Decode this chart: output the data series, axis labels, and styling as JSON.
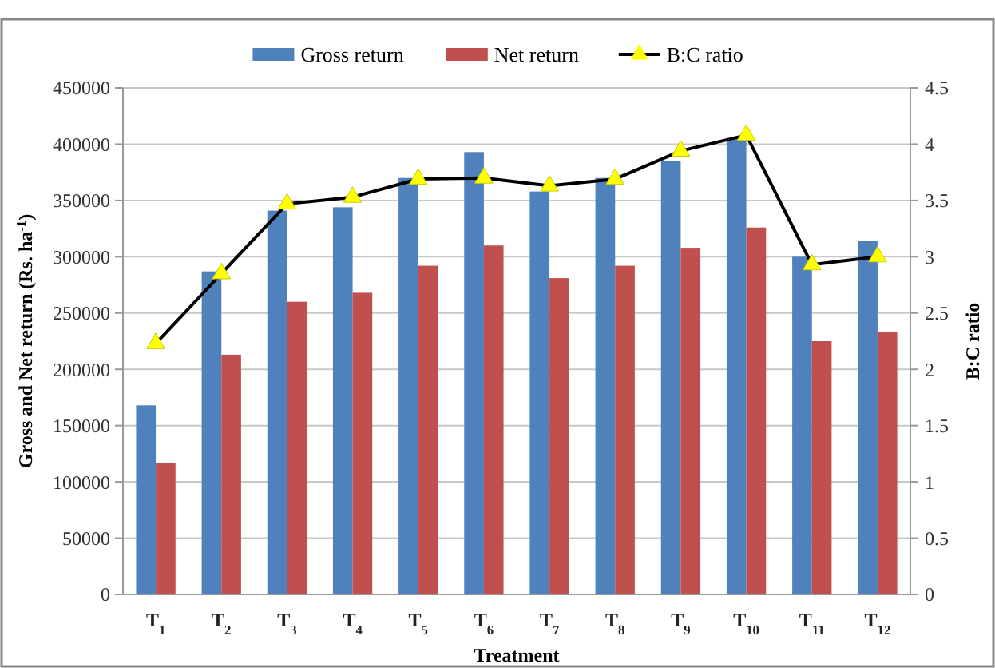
{
  "chart_data": {
    "type": "bar",
    "xlabel": "Treatment",
    "ylabel": "Gross and Net return (Rs. ha$^{-1}$)",
    "y2label": "B:C ratio",
    "categories": [
      "T$_{1}$",
      "T$_{2}$",
      "T$_{3}$",
      "T$_{4}$",
      "T$_{5}$",
      "T$_{6}$",
      "T$_{7}$",
      "T$_{8}$",
      "T$_{9}$",
      "T$_{10}$",
      "T$_{11}$",
      "T$_{12}$"
    ],
    "series": [
      {
        "name": "Gross return",
        "color": "#4f81bd",
        "values": [
          168000,
          287000,
          341000,
          344000,
          370000,
          393000,
          358000,
          370000,
          385000,
          405000,
          300000,
          314000
        ]
      },
      {
        "name": "Net return",
        "color": "#c0504d",
        "values": [
          117000,
          213000,
          260000,
          268000,
          292000,
          310000,
          281000,
          292000,
          308000,
          326000,
          225000,
          233000
        ]
      },
      {
        "name": "B:C ratio",
        "type": "line",
        "axis": "y2",
        "color": "#000000",
        "marker": "triangle",
        "values": [
          2.23,
          2.85,
          3.47,
          3.53,
          3.69,
          3.7,
          3.63,
          3.69,
          3.94,
          4.08,
          2.93,
          3.0
        ]
      }
    ],
    "ylim": [
      0,
      450000
    ],
    "yticks": [
      0,
      50000,
      100000,
      150000,
      200000,
      250000,
      300000,
      350000,
      400000,
      450000
    ],
    "y2lim": [
      0,
      4.5
    ],
    "y2ticks": [
      0,
      0.5,
      1,
      1.5,
      2,
      2.5,
      3,
      3.5,
      4,
      4.5
    ],
    "grid": "y",
    "legend": "top"
  }
}
